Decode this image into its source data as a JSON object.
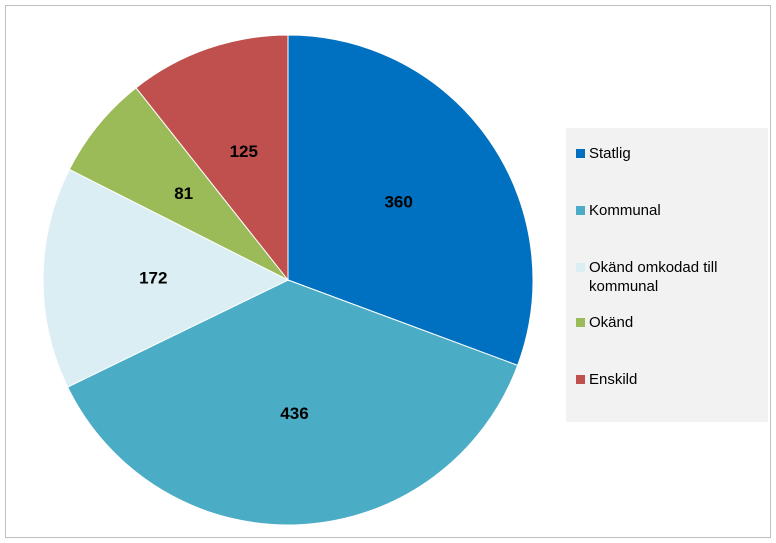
{
  "chart_data": {
    "type": "pie",
    "categories": [
      "Statlig",
      "Kommunal",
      "Okänd omkodad till kommunal",
      "Okänd",
      "Enskild"
    ],
    "values": [
      360,
      436,
      172,
      81,
      125
    ],
    "colors": [
      "#0070c0",
      "#4bacc6",
      "#daeef3",
      "#9bbb59",
      "#c0504d"
    ],
    "legend": "right"
  }
}
